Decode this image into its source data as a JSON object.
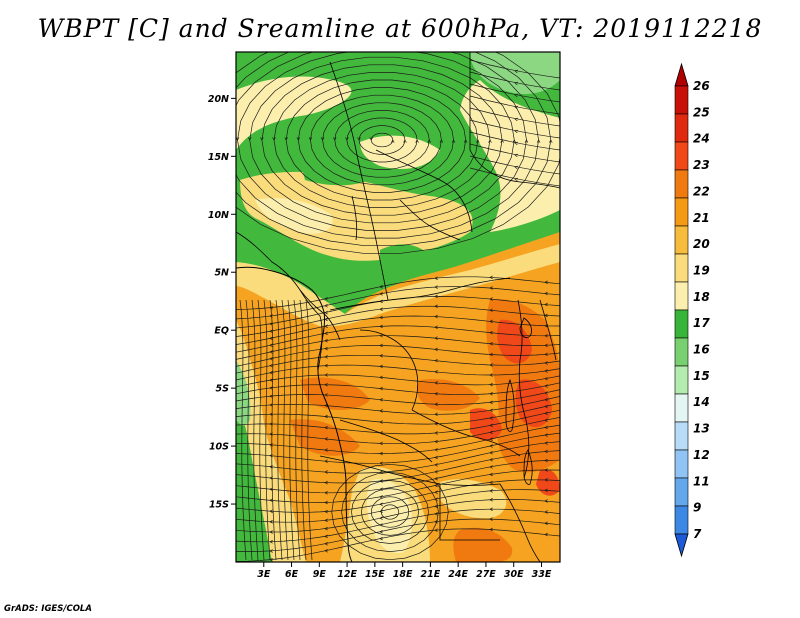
{
  "title": "WBPT [C] and Sreamline at 600hPa, VT: 2019112218",
  "credit": "GrADS: IGES/COLA",
  "map": {
    "lon_range": [
      0,
      35
    ],
    "lat_range": [
      -20,
      24
    ],
    "lat_ticks": [
      {
        "value": 20,
        "label": "20N"
      },
      {
        "value": 15,
        "label": "15N"
      },
      {
        "value": 10,
        "label": "10N"
      },
      {
        "value": 5,
        "label": "5N"
      },
      {
        "value": 0,
        "label": "EQ"
      },
      {
        "value": -5,
        "label": "5S"
      },
      {
        "value": -10,
        "label": "10S"
      },
      {
        "value": -15,
        "label": "15S"
      }
    ],
    "lon_ticks": [
      {
        "value": 3,
        "label": "3E"
      },
      {
        "value": 6,
        "label": "6E"
      },
      {
        "value": 9,
        "label": "9E"
      },
      {
        "value": 12,
        "label": "12E"
      },
      {
        "value": 15,
        "label": "15E"
      },
      {
        "value": 18,
        "label": "18E"
      },
      {
        "value": 21,
        "label": "21E"
      },
      {
        "value": 24,
        "label": "24E"
      },
      {
        "value": 27,
        "label": "27E"
      },
      {
        "value": 30,
        "label": "30E"
      },
      {
        "value": 33,
        "label": "33E"
      }
    ]
  },
  "colorbar": {
    "levels": [
      "26",
      "25",
      "24",
      "23",
      "22",
      "21",
      "20",
      "19",
      "18",
      "17",
      "16",
      "15",
      "14",
      "13",
      "12",
      "11",
      "9",
      "7"
    ],
    "colors": [
      "#b00000",
      "#c81008",
      "#e02a10",
      "#f04818",
      "#f07a10",
      "#f49a14",
      "#f8bc3c",
      "#fadc7c",
      "#fcefae",
      "#38b438",
      "#78d070",
      "#b4ecb0",
      "#e4f6f4",
      "#b8dcf8",
      "#90c4f4",
      "#64a8ec",
      "#3c88e4",
      "#1c5ad8"
    ]
  }
}
